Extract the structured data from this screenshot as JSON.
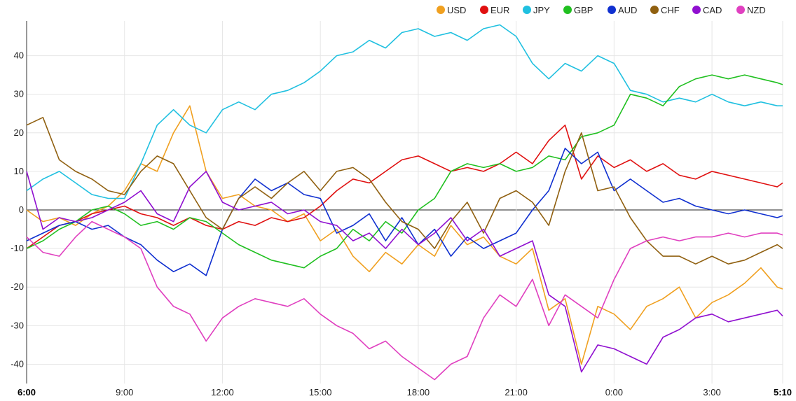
{
  "chart_data": {
    "type": "line",
    "title": "",
    "xlabel": "",
    "ylabel": "",
    "ylim": [
      -45,
      49
    ],
    "xlim": [
      0,
      23.1667
    ],
    "grid": true,
    "legend_position": "top-right",
    "y_ticks": [
      {
        "value": 40,
        "label": "40"
      },
      {
        "value": 30,
        "label": "30"
      },
      {
        "value": 20,
        "label": "20"
      },
      {
        "value": 10,
        "label": "10"
      },
      {
        "value": 0,
        "label": "0"
      },
      {
        "value": -10,
        "label": "-10"
      },
      {
        "value": -20,
        "label": "-20"
      },
      {
        "value": -30,
        "label": "-30"
      },
      {
        "value": -40,
        "label": "-40"
      }
    ],
    "x_ticks": [
      {
        "value": 0,
        "label": "6:00",
        "bold": true
      },
      {
        "value": 3,
        "label": "9:00",
        "bold": false
      },
      {
        "value": 6,
        "label": "12:00",
        "bold": false
      },
      {
        "value": 9,
        "label": "15:00",
        "bold": false
      },
      {
        "value": 12,
        "label": "18:00",
        "bold": false
      },
      {
        "value": 15,
        "label": "21:00",
        "bold": false
      },
      {
        "value": 18,
        "label": "0:00",
        "bold": false
      },
      {
        "value": 21,
        "label": "3:00",
        "bold": false
      },
      {
        "value": 23.1667,
        "label": "5:10",
        "bold": true
      }
    ],
    "x_unit": "hours since 6:00",
    "series": [
      {
        "name": "USD",
        "color": "#f0a020",
        "x": [
          0,
          0.5,
          1,
          1.5,
          2,
          2.5,
          3,
          3.5,
          4,
          4.5,
          5,
          5.5,
          6,
          6.5,
          7,
          7.5,
          8,
          8.5,
          9,
          9.5,
          10,
          10.5,
          11,
          11.5,
          12,
          12.5,
          13,
          13.5,
          14,
          14.5,
          15,
          15.5,
          16,
          16.5,
          17,
          17.5,
          18,
          18.5,
          19,
          19.5,
          20,
          20.5,
          21,
          21.5,
          22,
          22.5,
          23,
          23.1667
        ],
        "y": [
          0,
          -3,
          -2,
          -4,
          -1,
          1,
          5,
          12,
          10,
          20,
          27,
          10,
          3,
          4,
          1,
          0,
          -3,
          -1,
          -8,
          -5,
          -12,
          -16,
          -11,
          -14,
          -9,
          -12,
          -4,
          -9,
          -7,
          -12,
          -14,
          -10,
          -26,
          -23,
          -40,
          -25,
          -27,
          -31,
          -25,
          -23,
          -20,
          -28,
          -24,
          -22,
          -19,
          -15,
          -20,
          -20.5
        ]
      },
      {
        "name": "EUR",
        "color": "#e01010",
        "x": [
          0,
          0.5,
          1,
          1.5,
          2,
          2.5,
          3,
          3.5,
          4,
          4.5,
          5,
          5.5,
          6,
          6.5,
          7,
          7.5,
          8,
          8.5,
          9,
          9.5,
          10,
          10.5,
          11,
          11.5,
          12,
          12.5,
          13,
          13.5,
          14,
          14.5,
          15,
          15.5,
          16,
          16.5,
          17,
          17.5,
          18,
          18.5,
          19,
          19.5,
          20,
          20.5,
          21,
          21.5,
          22,
          22.5,
          23,
          23.1667
        ],
        "y": [
          -10,
          -7,
          -4,
          -3,
          -1,
          0,
          1,
          -1,
          -2,
          -4,
          -2,
          -4,
          -5,
          -3,
          -4,
          -2,
          -3,
          -2,
          1,
          5,
          8,
          7,
          10,
          13,
          14,
          12,
          10,
          11,
          10,
          12,
          15,
          12,
          18,
          22,
          8,
          14,
          11,
          13,
          10,
          12,
          9,
          8,
          10,
          9,
          8,
          7,
          6,
          7
        ]
      },
      {
        "name": "JPY",
        "color": "#20c0e0",
        "x": [
          0,
          0.5,
          1,
          1.5,
          2,
          2.5,
          3,
          3.5,
          4,
          4.5,
          5,
          5.5,
          6,
          6.5,
          7,
          7.5,
          8,
          8.5,
          9,
          9.5,
          10,
          10.5,
          11,
          11.5,
          12,
          12.5,
          13,
          13.5,
          14,
          14.5,
          15,
          15.5,
          16,
          16.5,
          17,
          17.5,
          18,
          18.5,
          19,
          19.5,
          20,
          20.5,
          21,
          21.5,
          22,
          22.5,
          23,
          23.1667
        ],
        "y": [
          5,
          8,
          10,
          7,
          4,
          3,
          3,
          12,
          22,
          26,
          22,
          20,
          26,
          28,
          26,
          30,
          31,
          33,
          36,
          40,
          41,
          44,
          42,
          46,
          47,
          45,
          46,
          44,
          47,
          48,
          45,
          38,
          34,
          38,
          36,
          40,
          38,
          31,
          30,
          28,
          29,
          28,
          30,
          28,
          27,
          28,
          27,
          27
        ]
      },
      {
        "name": "GBP",
        "color": "#20c020",
        "x": [
          0,
          0.5,
          1,
          1.5,
          2,
          2.5,
          3,
          3.5,
          4,
          4.5,
          5,
          5.5,
          6,
          6.5,
          7,
          7.5,
          8,
          8.5,
          9,
          9.5,
          10,
          10.5,
          11,
          11.5,
          12,
          12.5,
          13,
          13.5,
          14,
          14.5,
          15,
          15.5,
          16,
          16.5,
          17,
          17.5,
          18,
          18.5,
          19,
          19.5,
          20,
          20.5,
          21,
          21.5,
          22,
          22.5,
          23,
          23.1667
        ],
        "y": [
          -10,
          -8,
          -5,
          -3,
          0,
          1,
          -1,
          -4,
          -3,
          -5,
          -2,
          -3,
          -6,
          -9,
          -11,
          -13,
          -14,
          -15,
          -12,
          -10,
          -5,
          -8,
          -3,
          -6,
          0,
          3,
          10,
          12,
          11,
          12,
          10,
          11,
          14,
          13,
          19,
          20,
          22,
          30,
          29,
          27,
          32,
          34,
          35,
          34,
          35,
          34,
          33,
          32.5
        ]
      },
      {
        "name": "AUD",
        "color": "#1030d0",
        "x": [
          0,
          0.5,
          1,
          1.5,
          2,
          2.5,
          3,
          3.5,
          4,
          4.5,
          5,
          5.5,
          6,
          6.5,
          7,
          7.5,
          8,
          8.5,
          9,
          9.5,
          10,
          10.5,
          11,
          11.5,
          12,
          12.5,
          13,
          13.5,
          14,
          14.5,
          15,
          15.5,
          16,
          16.5,
          17,
          17.5,
          18,
          18.5,
          19,
          19.5,
          20,
          20.5,
          21,
          21.5,
          22,
          22.5,
          23,
          23.1667
        ],
        "y": [
          -8,
          -6,
          -4,
          -3,
          -5,
          -4,
          -7,
          -9,
          -13,
          -16,
          -14,
          -17,
          -5,
          3,
          8,
          5,
          7,
          4,
          3,
          -6,
          -4,
          -1,
          -8,
          -2,
          -9,
          -5,
          -12,
          -7,
          -10,
          -8,
          -6,
          0,
          5,
          16,
          12,
          15,
          5,
          8,
          5,
          2,
          3,
          1,
          0,
          -1,
          0,
          -1,
          -2,
          -1.5
        ]
      },
      {
        "name": "CHF",
        "color": "#906010",
        "x": [
          0,
          0.5,
          1,
          1.5,
          2,
          2.5,
          3,
          3.5,
          4,
          4.5,
          5,
          5.5,
          6,
          6.5,
          7,
          7.5,
          8,
          8.5,
          9,
          9.5,
          10,
          10.5,
          11,
          11.5,
          12,
          12.5,
          13,
          13.5,
          14,
          14.5,
          15,
          15.5,
          16,
          16.5,
          17,
          17.5,
          18,
          18.5,
          19,
          19.5,
          20,
          20.5,
          21,
          21.5,
          22,
          22.5,
          23,
          23.1667
        ],
        "y": [
          22,
          24,
          13,
          10,
          8,
          5,
          4,
          10,
          14,
          12,
          5,
          -2,
          -5,
          3,
          6,
          3,
          7,
          10,
          5,
          10,
          11,
          8,
          2,
          -3,
          -5,
          -10,
          -3,
          2,
          -6,
          3,
          5,
          2,
          -4,
          10,
          20,
          5,
          6,
          -2,
          -8,
          -12,
          -12,
          -14,
          -12,
          -14,
          -13,
          -11,
          -9,
          -10
        ]
      },
      {
        "name": "CAD",
        "color": "#9010d0",
        "x": [
          0,
          0.5,
          1,
          1.5,
          2,
          2.5,
          3,
          3.5,
          4,
          4.5,
          5,
          5.5,
          6,
          6.5,
          7,
          7.5,
          8,
          8.5,
          9,
          9.5,
          10,
          10.5,
          11,
          11.5,
          12,
          12.5,
          13,
          13.5,
          14,
          14.5,
          15,
          15.5,
          16,
          16.5,
          17,
          17.5,
          18,
          18.5,
          19,
          19.5,
          20,
          20.5,
          21,
          21.5,
          22,
          22.5,
          23,
          23.1667
        ],
        "y": [
          10,
          -5,
          -2,
          -3,
          -2,
          0,
          2,
          5,
          -1,
          -3,
          6,
          10,
          2,
          0,
          1,
          2,
          -1,
          0,
          -3,
          -4,
          -8,
          -6,
          -10,
          -5,
          -9,
          -6,
          -2,
          -8,
          -5,
          -12,
          -10,
          -8,
          -22,
          -25,
          -42,
          -35,
          -36,
          -38,
          -40,
          -33,
          -31,
          -28,
          -27,
          -29,
          -28,
          -27,
          -26,
          -27.5
        ]
      },
      {
        "name": "NZD",
        "color": "#e040c0",
        "x": [
          0,
          0.5,
          1,
          1.5,
          2,
          2.5,
          3,
          3.5,
          4,
          4.5,
          5,
          5.5,
          6,
          6.5,
          7,
          7.5,
          8,
          8.5,
          9,
          9.5,
          10,
          10.5,
          11,
          11.5,
          12,
          12.5,
          13,
          13.5,
          14,
          14.5,
          15,
          15.5,
          16,
          16.5,
          17,
          17.5,
          18,
          18.5,
          19,
          19.5,
          20,
          20.5,
          21,
          21.5,
          22,
          22.5,
          23,
          23.1667
        ],
        "y": [
          -7,
          -11,
          -12,
          -7,
          -3,
          -5,
          -7,
          -10,
          -20,
          -25,
          -27,
          -34,
          -28,
          -25,
          -23,
          -24,
          -25,
          -23,
          -27,
          -30,
          -32,
          -36,
          -34,
          -38,
          -41,
          -44,
          -40,
          -38,
          -28,
          -22,
          -25,
          -18,
          -30,
          -22,
          -25,
          -28,
          -18,
          -10,
          -8,
          -7,
          -8,
          -7,
          -7,
          -6,
          -7,
          -6,
          -6,
          -6.5
        ]
      }
    ]
  }
}
